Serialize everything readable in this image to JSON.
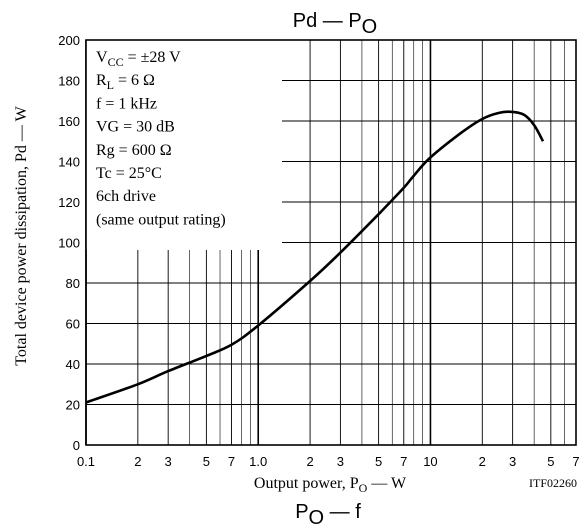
{
  "chart_data": {
    "type": "line",
    "title": "Pd — P",
    "title_sub": "O",
    "ylabel": "Total device power dissipation, Pd — W",
    "xlabel_prefix": "Output power, P",
    "xlabel_sub": "O",
    "xlabel_suffix": " — W",
    "x_scale": "log",
    "xlim": [
      0.1,
      70
    ],
    "ylim": [
      0,
      200
    ],
    "grid": true,
    "yticks": [
      0,
      20,
      40,
      60,
      80,
      100,
      120,
      140,
      160,
      180,
      200
    ],
    "xticks": [
      {
        "x": 0.1,
        "label": "0.1"
      },
      {
        "x": 0.2,
        "label": "2"
      },
      {
        "x": 0.3,
        "label": "3"
      },
      {
        "x": 0.5,
        "label": "5"
      },
      {
        "x": 0.7,
        "label": "7"
      },
      {
        "x": 1,
        "label": "1.0"
      },
      {
        "x": 2,
        "label": "2"
      },
      {
        "x": 3,
        "label": "3"
      },
      {
        "x": 5,
        "label": "5"
      },
      {
        "x": 7,
        "label": "7"
      },
      {
        "x": 10,
        "label": "10"
      },
      {
        "x": 20,
        "label": "2"
      },
      {
        "x": 30,
        "label": "3"
      },
      {
        "x": 50,
        "label": "5"
      },
      {
        "x": 70,
        "label": "7"
      }
    ],
    "minor_gridlines_x": [
      0.4,
      0.6,
      0.8,
      0.9,
      4,
      6,
      8,
      9,
      40,
      60
    ],
    "series": [
      {
        "points": [
          [
            0.1,
            21
          ],
          [
            0.2,
            30
          ],
          [
            0.3,
            36.5
          ],
          [
            0.5,
            44
          ],
          [
            0.7,
            49.5
          ],
          [
            1,
            59
          ],
          [
            2,
            81
          ],
          [
            3,
            95
          ],
          [
            5,
            114
          ],
          [
            7,
            127
          ],
          [
            8,
            133
          ],
          [
            10,
            142
          ],
          [
            15,
            154
          ],
          [
            20,
            161
          ],
          [
            25,
            164
          ],
          [
            30,
            164.5
          ],
          [
            35,
            163
          ],
          [
            40,
            158
          ],
          [
            45,
            150
          ]
        ]
      }
    ],
    "conditions": [
      {
        "main": "V",
        "sub": "CC",
        "tail": " = ±28 V"
      },
      {
        "main": "R",
        "sub": "L",
        "tail": " = 6 Ω"
      },
      {
        "main": "f = 1 kHz",
        "sub": "",
        "tail": ""
      },
      {
        "main": "VG = 30 dB",
        "sub": "",
        "tail": ""
      },
      {
        "main": "Rg = 600 Ω",
        "sub": "",
        "tail": ""
      },
      {
        "main": "Tc = 25°C",
        "sub": "",
        "tail": ""
      },
      {
        "main": "6ch drive",
        "sub": "",
        "tail": ""
      },
      {
        "main": "(same output rating)",
        "sub": "",
        "tail": ""
      }
    ],
    "code": "ITF02260",
    "next_title": "P",
    "next_title_sub": "O",
    "next_title_tail": " — f"
  }
}
